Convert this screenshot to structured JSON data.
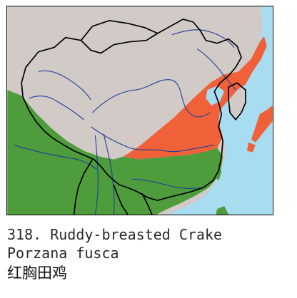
{
  "map": {
    "colors": {
      "ocean": "#a8dcf1",
      "land": "#d1cac7",
      "resident_range": "#4e9c3c",
      "breeding_range": "#f0613a",
      "border": "#000000",
      "river": "#1f3f9a"
    },
    "icons": [
      "distribution-map-icon"
    ]
  },
  "caption": {
    "line1": "318. Ruddy-breasted Crake",
    "line2": "Porzana fusca",
    "line3": "红胸田鸡"
  }
}
